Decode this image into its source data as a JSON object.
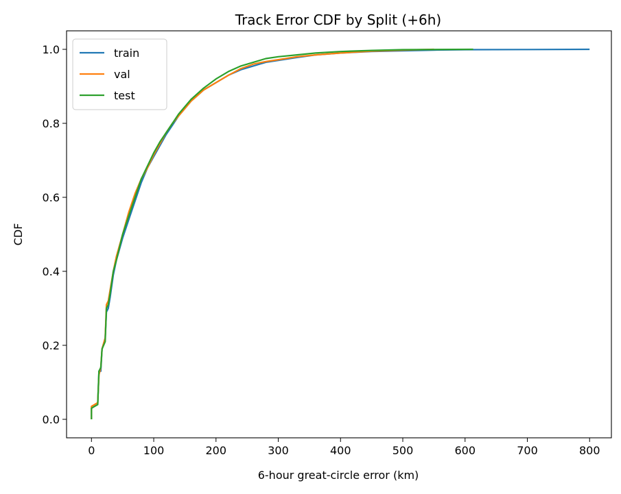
{
  "chart_data": {
    "type": "line",
    "title": "Track Error CDF by Split (+6h)",
    "xlabel": "6-hour great-circle error (km)",
    "ylabel": "CDF",
    "xlim": [
      -40,
      835
    ],
    "ylim": [
      -0.05,
      1.05
    ],
    "xticks": [
      0,
      100,
      200,
      300,
      400,
      500,
      600,
      700,
      800
    ],
    "yticks": [
      0.0,
      0.2,
      0.4,
      0.6,
      0.8,
      1.0
    ],
    "xtick_labels": [
      "0",
      "100",
      "200",
      "300",
      "400",
      "500",
      "600",
      "700",
      "800"
    ],
    "ytick_labels": [
      "0.0",
      "0.2",
      "0.4",
      "0.6",
      "0.8",
      "1.0"
    ],
    "grid": false,
    "legend_position": "top-left",
    "series": [
      {
        "name": "train",
        "color": "#1f77b4",
        "points": [
          [
            0,
            0
          ],
          [
            0,
            0.03
          ],
          [
            5,
            0.035
          ],
          [
            10,
            0.04
          ],
          [
            12,
            0.13
          ],
          [
            15,
            0.13
          ],
          [
            17,
            0.19
          ],
          [
            22,
            0.22
          ],
          [
            24,
            0.29
          ],
          [
            27,
            0.3
          ],
          [
            30,
            0.33
          ],
          [
            35,
            0.39
          ],
          [
            40,
            0.43
          ],
          [
            50,
            0.49
          ],
          [
            60,
            0.54
          ],
          [
            70,
            0.59
          ],
          [
            80,
            0.64
          ],
          [
            90,
            0.68
          ],
          [
            100,
            0.71
          ],
          [
            110,
            0.74
          ],
          [
            120,
            0.77
          ],
          [
            130,
            0.795
          ],
          [
            140,
            0.82
          ],
          [
            150,
            0.84
          ],
          [
            160,
            0.86
          ],
          [
            170,
            0.875
          ],
          [
            180,
            0.89
          ],
          [
            200,
            0.91
          ],
          [
            220,
            0.93
          ],
          [
            240,
            0.945
          ],
          [
            260,
            0.955
          ],
          [
            280,
            0.965
          ],
          [
            300,
            0.97
          ],
          [
            330,
            0.978
          ],
          [
            360,
            0.985
          ],
          [
            400,
            0.99
          ],
          [
            450,
            0.994
          ],
          [
            500,
            0.996
          ],
          [
            550,
            0.998
          ],
          [
            600,
            0.999
          ],
          [
            700,
            0.9995
          ],
          [
            800,
            1.0
          ]
        ]
      },
      {
        "name": "val",
        "color": "#ff7f0e",
        "points": [
          [
            0,
            0
          ],
          [
            0,
            0.035
          ],
          [
            5,
            0.04
          ],
          [
            10,
            0.045
          ],
          [
            12,
            0.12
          ],
          [
            15,
            0.14
          ],
          [
            17,
            0.19
          ],
          [
            22,
            0.22
          ],
          [
            24,
            0.31
          ],
          [
            27,
            0.32
          ],
          [
            30,
            0.35
          ],
          [
            35,
            0.4
          ],
          [
            40,
            0.44
          ],
          [
            50,
            0.5
          ],
          [
            60,
            0.56
          ],
          [
            70,
            0.61
          ],
          [
            80,
            0.65
          ],
          [
            90,
            0.68
          ],
          [
            100,
            0.715
          ],
          [
            110,
            0.745
          ],
          [
            120,
            0.775
          ],
          [
            130,
            0.8
          ],
          [
            140,
            0.82
          ],
          [
            150,
            0.84
          ],
          [
            160,
            0.86
          ],
          [
            170,
            0.875
          ],
          [
            180,
            0.89
          ],
          [
            200,
            0.91
          ],
          [
            220,
            0.93
          ],
          [
            240,
            0.948
          ],
          [
            260,
            0.96
          ],
          [
            280,
            0.967
          ],
          [
            300,
            0.972
          ],
          [
            330,
            0.98
          ],
          [
            360,
            0.985
          ],
          [
            400,
            0.99
          ],
          [
            450,
            0.995
          ],
          [
            500,
            0.998
          ],
          [
            550,
            1.0
          ]
        ]
      },
      {
        "name": "test",
        "color": "#2ca02c",
        "points": [
          [
            0,
            0
          ],
          [
            0,
            0.03
          ],
          [
            5,
            0.035
          ],
          [
            10,
            0.04
          ],
          [
            12,
            0.13
          ],
          [
            15,
            0.14
          ],
          [
            17,
            0.19
          ],
          [
            22,
            0.21
          ],
          [
            24,
            0.3
          ],
          [
            27,
            0.31
          ],
          [
            30,
            0.34
          ],
          [
            35,
            0.4
          ],
          [
            40,
            0.43
          ],
          [
            50,
            0.5
          ],
          [
            60,
            0.55
          ],
          [
            70,
            0.6
          ],
          [
            80,
            0.65
          ],
          [
            90,
            0.685
          ],
          [
            100,
            0.72
          ],
          [
            110,
            0.75
          ],
          [
            120,
            0.775
          ],
          [
            130,
            0.8
          ],
          [
            140,
            0.825
          ],
          [
            150,
            0.845
          ],
          [
            160,
            0.865
          ],
          [
            170,
            0.88
          ],
          [
            180,
            0.895
          ],
          [
            200,
            0.92
          ],
          [
            220,
            0.94
          ],
          [
            240,
            0.955
          ],
          [
            260,
            0.965
          ],
          [
            280,
            0.975
          ],
          [
            300,
            0.98
          ],
          [
            330,
            0.985
          ],
          [
            360,
            0.99
          ],
          [
            400,
            0.994
          ],
          [
            450,
            0.997
          ],
          [
            500,
            0.999
          ],
          [
            613,
            1.0
          ]
        ]
      }
    ]
  }
}
